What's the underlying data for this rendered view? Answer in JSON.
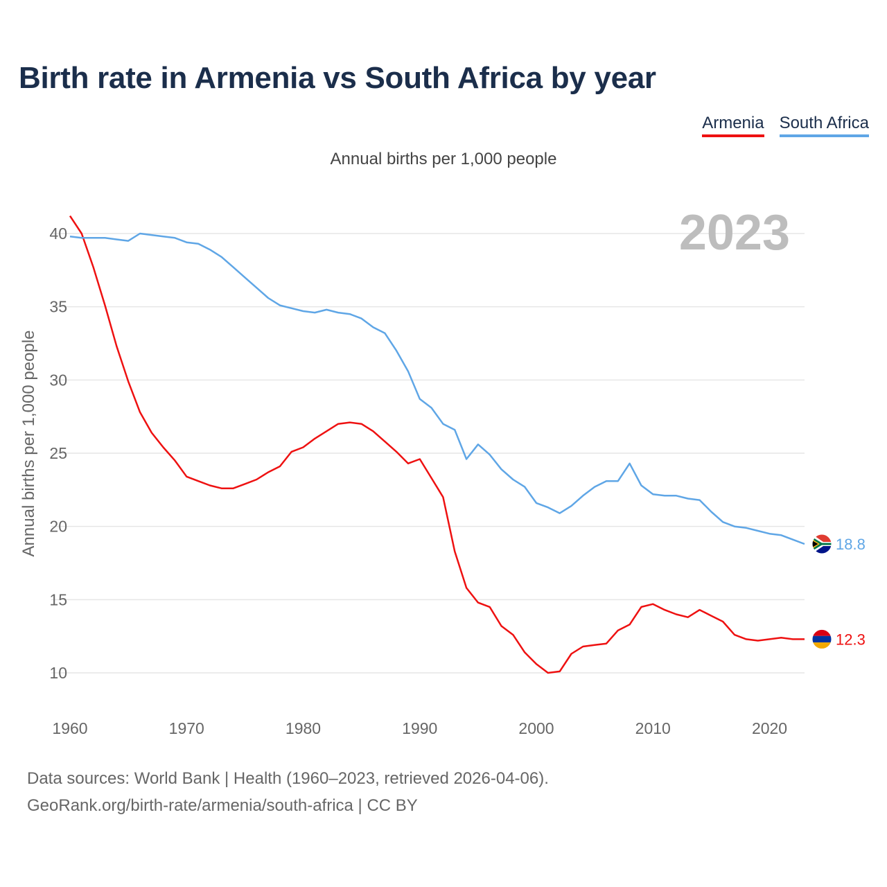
{
  "title": "Birth rate in Armenia vs South Africa by year",
  "subtitle": "Annual births per 1,000 people",
  "legend": {
    "armenia": "Armenia",
    "south_africa": "South Africa"
  },
  "colors": {
    "armenia": "#ee1111",
    "south_africa": "#5fa6e6",
    "title": "#1b2e4b"
  },
  "year_display": "2023",
  "footer": {
    "line1": "Data sources: World Bank | Health (1960–2023, retrieved 2026-04-06).",
    "line2": "GeoRank.org/birth-rate/armenia/south-africa | CC BY"
  },
  "chart_data": {
    "type": "line",
    "title": "Birth rate in Armenia vs South Africa by year",
    "xlabel": "",
    "ylabel": "Annual births per 1,000 people",
    "xlim": [
      1960,
      2023
    ],
    "ylim": [
      10,
      40
    ],
    "x_ticks": [
      "1960",
      "1970",
      "1980",
      "1990",
      "2000",
      "2010",
      "2020"
    ],
    "y_ticks": [
      "10",
      "15",
      "20",
      "25",
      "30",
      "35",
      "40"
    ],
    "grid": true,
    "x": [
      1960,
      1961,
      1962,
      1963,
      1964,
      1965,
      1966,
      1967,
      1968,
      1969,
      1970,
      1971,
      1972,
      1973,
      1974,
      1975,
      1976,
      1977,
      1978,
      1979,
      1980,
      1981,
      1982,
      1983,
      1984,
      1985,
      1986,
      1987,
      1988,
      1989,
      1990,
      1991,
      1992,
      1993,
      1994,
      1995,
      1996,
      1997,
      1998,
      1999,
      2000,
      2001,
      2002,
      2003,
      2004,
      2005,
      2006,
      2007,
      2008,
      2009,
      2010,
      2011,
      2012,
      2013,
      2014,
      2015,
      2016,
      2017,
      2018,
      2019,
      2020,
      2021,
      2022,
      2023
    ],
    "series": [
      {
        "name": "Armenia",
        "color": "#ee1111",
        "end_label": "12.3",
        "flag": "armenia-flag",
        "values": [
          41.2,
          40.0,
          37.7,
          35.1,
          32.3,
          29.9,
          27.8,
          26.4,
          25.4,
          24.5,
          23.4,
          23.1,
          22.8,
          22.6,
          22.6,
          22.9,
          23.2,
          23.7,
          24.1,
          25.1,
          25.4,
          26.0,
          26.5,
          27.0,
          27.1,
          27.0,
          26.5,
          25.8,
          25.1,
          24.3,
          24.6,
          23.3,
          22.0,
          18.3,
          15.8,
          14.8,
          14.5,
          13.2,
          12.6,
          11.4,
          10.6,
          10.0,
          10.1,
          11.3,
          11.8,
          11.9,
          12.0,
          12.9,
          13.3,
          14.5,
          14.7,
          14.3,
          14.0,
          13.8,
          14.3,
          13.9,
          13.5,
          12.6,
          12.3,
          12.2,
          12.3,
          12.4,
          12.3,
          12.3
        ]
      },
      {
        "name": "South Africa",
        "color": "#5fa6e6",
        "end_label": "18.8",
        "flag": "south-africa-flag",
        "values": [
          39.8,
          39.7,
          39.7,
          39.7,
          39.6,
          39.5,
          40.0,
          39.9,
          39.8,
          39.7,
          39.4,
          39.3,
          38.9,
          38.4,
          37.7,
          37.0,
          36.3,
          35.6,
          35.1,
          34.9,
          34.7,
          34.6,
          34.8,
          34.6,
          34.5,
          34.2,
          33.6,
          33.2,
          32.0,
          30.6,
          28.7,
          28.1,
          27.0,
          26.6,
          24.6,
          25.6,
          24.9,
          23.9,
          23.2,
          22.7,
          21.6,
          21.3,
          20.9,
          21.4,
          22.1,
          22.7,
          23.1,
          23.1,
          24.3,
          22.8,
          22.2,
          22.1,
          22.1,
          21.9,
          21.8,
          21.0,
          20.3,
          20.0,
          19.9,
          19.7,
          19.5,
          19.4,
          19.1,
          18.8
        ]
      }
    ]
  }
}
